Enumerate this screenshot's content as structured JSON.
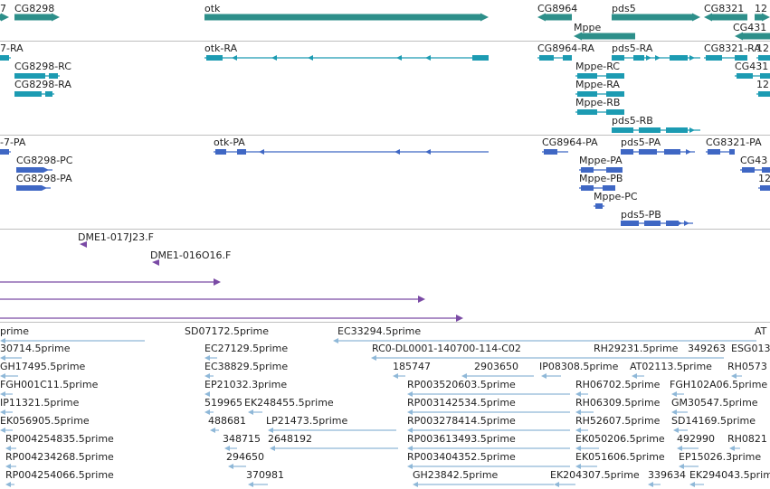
{
  "colors": {
    "gene": "#2d8f8a",
    "transcript": "#1c9bb2",
    "protein": "#3f67c4",
    "clone": "#7a4aa5",
    "est": "#8fb8d8",
    "text": "#222222",
    "separator": "#bfbfbf"
  },
  "tracks": {
    "genes": {
      "labels": [
        "7",
        "CG8298",
        "otk",
        "CG8964",
        "pds5",
        "CG8321",
        "12",
        "Mppe",
        "CG431"
      ]
    },
    "transcripts": {
      "labels": [
        "7-RA",
        "otk-RA",
        "CG8964-RA",
        "pds5-RA",
        "CG8321-RA",
        "12",
        "CG8298-RC",
        "Mppe-RC",
        "CG431",
        "CG8298-RA",
        "Mppe-RA",
        "12",
        "Mppe-RB",
        "pds5-RB"
      ]
    },
    "proteins": {
      "labels": [
        "-7-PA",
        "otk-PA",
        "CG8964-PA",
        "pds5-PA",
        "CG8321-PA",
        "CG8298-PC",
        "Mppe-PA",
        "CG43",
        "CG8298-PA",
        "Mppe-PB",
        "12",
        "Mppe-PC",
        "pds5-PB"
      ]
    },
    "clones": {
      "labels": [
        "DME1-017J23.F",
        "DME1-016O16.F"
      ]
    },
    "ests": {
      "labels": [
        "prime",
        "SD07172.5prime",
        "EC33294.5prime",
        "AT",
        "30714.5prime",
        "EC27129.5prime",
        "RC0-DL0001-140700-114-C02",
        "RH29231.5prime",
        "349263",
        "ESG013",
        "GH17495.5prime",
        "EC38829.5prime",
        "185747",
        "2903650",
        "IP08308.5prime",
        "AT02113.5prime",
        "RH0573",
        "FGH001C11.5prime",
        "EP21032.3prime",
        "RP003520603.5prime",
        "RH06702.5prime",
        "FGH102A06.5prime",
        "IP11321.5prime",
        "519965",
        "EK248455.5prime",
        "RP003142534.5prime",
        "RH06309.5prime",
        "GM30547.5prime",
        "EK056905.5prime",
        "488681",
        "LP21473.5prime",
        "RP003278414.5prime",
        "RH52607.5prime",
        "SD14169.5prime",
        "RP004254835.5prime",
        "348715",
        "2648192",
        "RP003613493.5prime",
        "EK050206.5prime",
        "492990",
        "RH0821",
        "RP004234268.5prime",
        "294650",
        "RP003404352.5prime",
        "EK051606.5prime",
        "EP15026.3prime",
        "RP004254066.5prime",
        "370981",
        "GH23842.5prime",
        "EK204307.5prime",
        "339634",
        "EK294043.5prime"
      ]
    }
  }
}
